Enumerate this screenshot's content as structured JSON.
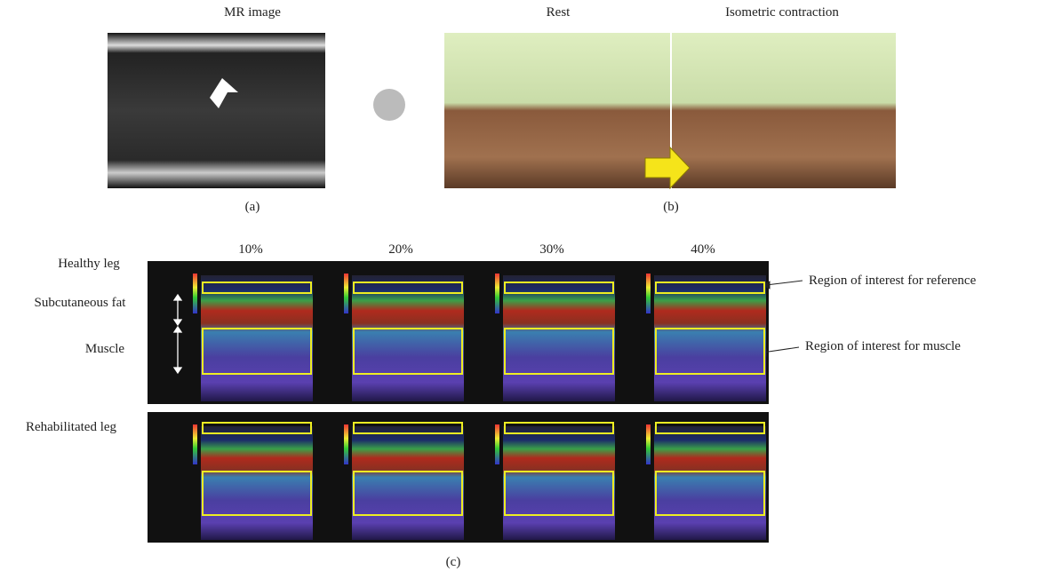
{
  "panel_a": {
    "title": "MR image",
    "label": "(a)"
  },
  "panel_b": {
    "titles": [
      "Rest",
      "Isometric contraction"
    ],
    "label": "(b)"
  },
  "panel_c": {
    "columns": [
      "10%",
      "20%",
      "30%",
      "40%"
    ],
    "rows": [
      "Healthy leg",
      "Rehabilitated leg"
    ],
    "annotations": {
      "fat": "Subcutaneous fat",
      "muscle": "Muscle",
      "roi_reference": "Region of interest for reference",
      "roi_muscle": "Region of interest for muscle"
    },
    "label": "(c)"
  }
}
